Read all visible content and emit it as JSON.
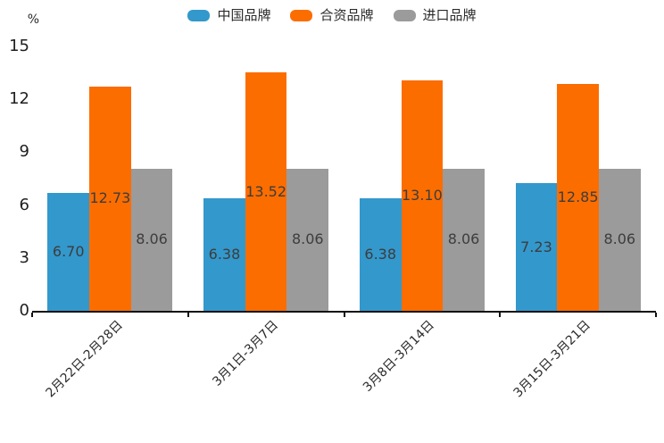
{
  "chart_data": {
    "type": "bar",
    "title": "",
    "xlabel": "",
    "ylabel": "%",
    "categories": [
      "2月22日-2月28日",
      "3月1日-3月7日",
      "3月8日-3月14日",
      "3月15日-3月21日"
    ],
    "series": [
      {
        "name": "中国品牌",
        "color": "#3398CC",
        "values": [
          6.7,
          6.38,
          6.38,
          7.23
        ]
      },
      {
        "name": "合资品牌",
        "color": "#FC6D00",
        "values": [
          12.73,
          13.52,
          13.1,
          12.85
        ]
      },
      {
        "name": "进口品牌",
        "color": "#9B9B9B",
        "values": [
          8.06,
          8.06,
          8.06,
          8.06
        ]
      }
    ],
    "value_label_decimals": 2,
    "yticks": [
      0,
      3,
      6,
      9,
      12,
      15
    ],
    "ylim": [
      0,
      15
    ],
    "grid": false,
    "legend_position": "top-center",
    "colors": {
      "axis": "#111111",
      "tick_text": "#1f1f1f",
      "bar_label_text": "#3d3d3d",
      "background": "#ffffff"
    }
  }
}
